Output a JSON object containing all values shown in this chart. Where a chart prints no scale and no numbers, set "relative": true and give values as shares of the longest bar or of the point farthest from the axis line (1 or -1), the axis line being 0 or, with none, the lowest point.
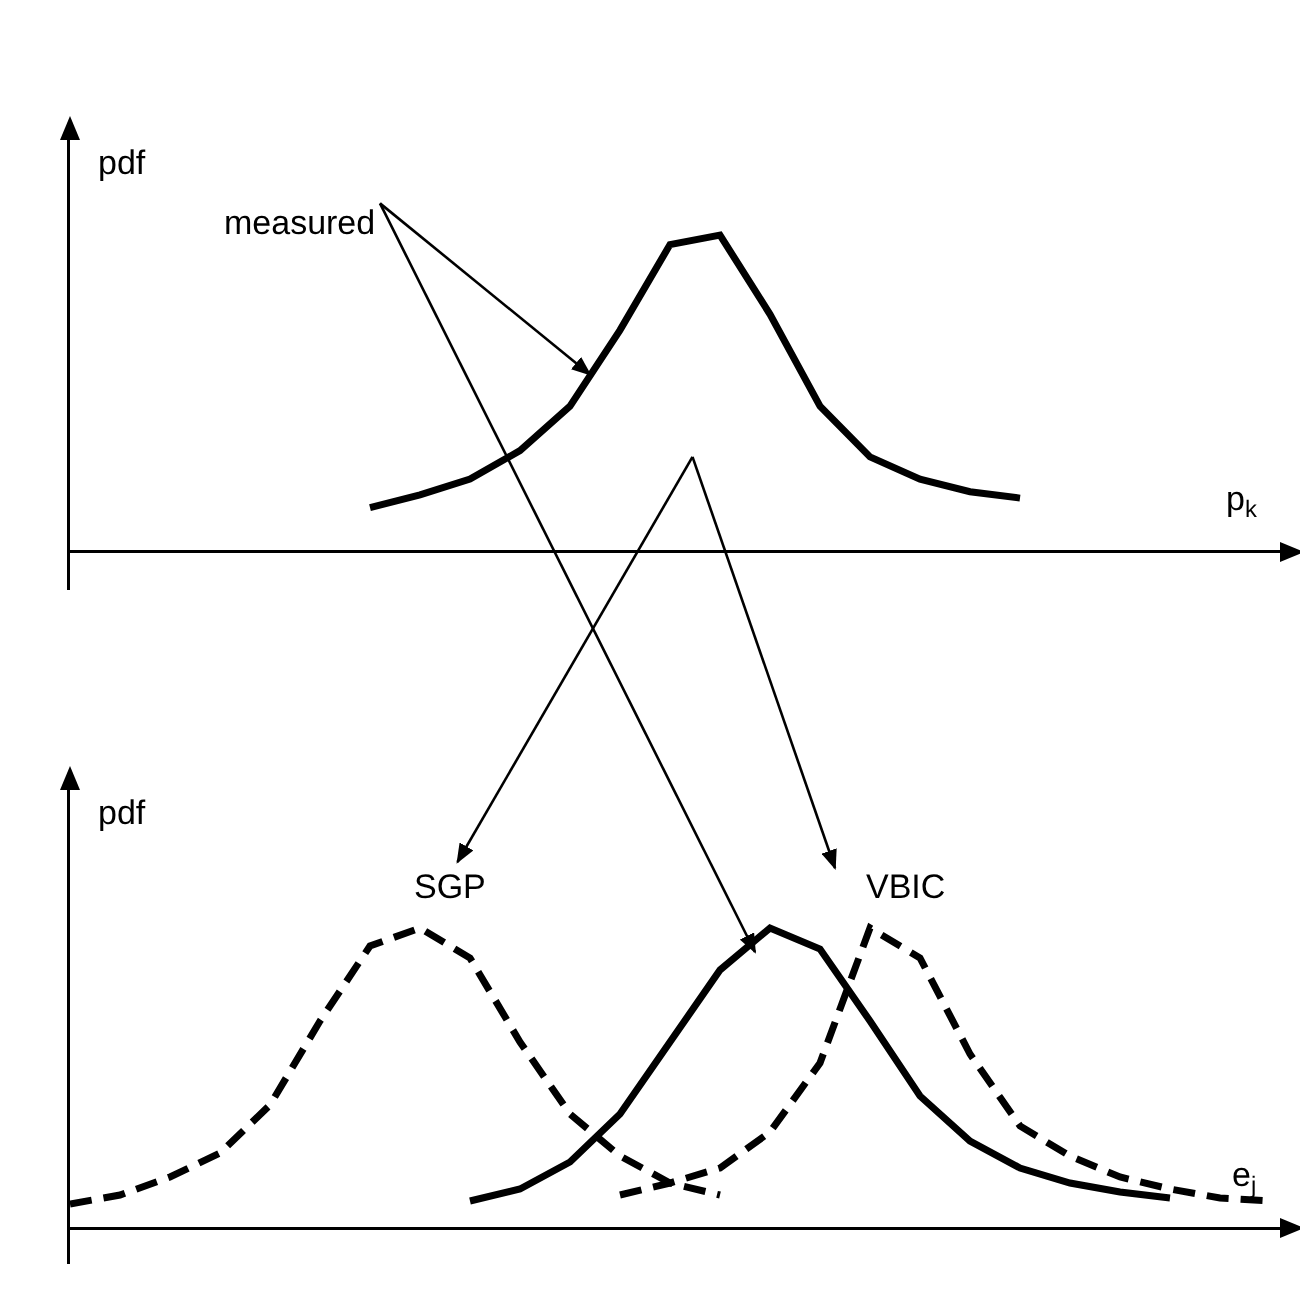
{
  "chart_data": [
    {
      "type": "line",
      "xlabel": "p$_{k}$",
      "ylabel": "pdf",
      "relative": true,
      "grid": false,
      "legend": false,
      "marker": "none",
      "categories": [
        null,
        null,
        null,
        null,
        null,
        null,
        null,
        null,
        null,
        null,
        null,
        null,
        null,
        null,
        null,
        null,
        null,
        null,
        null,
        null,
        null,
        null,
        null,
        null,
        null
      ],
      "series": [
        {
          "name": "measured",
          "color": "#000000",
          "line_style": "solid",
          "values": [
            null,
            null,
            null,
            null,
            null,
            null,
            0.14,
            0.18,
            0.23,
            0.32,
            0.46,
            0.7,
            0.97,
            1,
            0.75,
            0.46,
            0.3,
            0.23,
            0.19,
            0.17,
            null,
            null,
            null,
            null,
            null
          ]
        }
      ]
    },
    {
      "type": "line",
      "xlabel": "e$_{j}$",
      "ylabel": "pdf",
      "relative": true,
      "grid": false,
      "legend": false,
      "marker": "none",
      "categories": [
        null,
        null,
        null,
        null,
        null,
        null,
        null,
        null,
        null,
        null,
        null,
        null,
        null,
        null,
        null,
        null,
        null,
        null,
        null,
        null,
        null,
        null,
        null,
        null,
        null
      ],
      "series": [
        {
          "name": "SGP",
          "color": "#000000",
          "line_style": "dashed",
          "values": [
            0.08,
            0.11,
            0.17,
            0.25,
            0.41,
            0.69,
            0.94,
            1,
            0.9,
            0.62,
            0.38,
            0.24,
            0.15,
            0.11,
            null,
            null,
            null,
            null,
            null,
            null,
            null,
            null,
            null,
            null,
            null
          ]
        },
        {
          "color": "#000000",
          "line_style": "solid",
          "values": [
            null,
            null,
            null,
            null,
            null,
            null,
            null,
            null,
            0.09,
            0.13,
            0.22,
            0.38,
            0.62,
            0.86,
            1,
            0.93,
            0.69,
            0.44,
            0.29,
            0.2,
            0.15,
            0.12,
            0.1,
            null,
            null
          ]
        },
        {
          "name": "VBIC",
          "color": "#000000",
          "line_style": "dashed",
          "values": [
            null,
            null,
            null,
            null,
            null,
            null,
            null,
            null,
            null,
            null,
            null,
            0.11,
            0.15,
            0.2,
            0.32,
            0.55,
            1,
            0.9,
            0.58,
            0.34,
            0.24,
            0.17,
            0.13,
            0.1,
            0.09
          ]
        }
      ]
    }
  ]
}
